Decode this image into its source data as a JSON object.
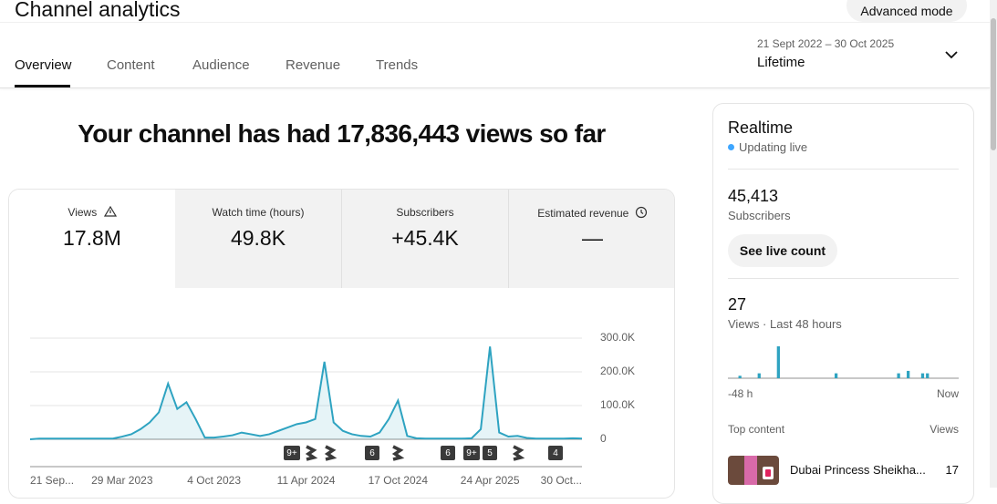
{
  "header": {
    "title": "Channel analytics",
    "advanced_mode": "Advanced mode"
  },
  "tabs": [
    "Overview",
    "Content",
    "Audience",
    "Revenue",
    "Trends"
  ],
  "date_range": {
    "range": "21 Sept 2022 – 30 Oct 2025",
    "label": "Lifetime"
  },
  "headline": "Your channel has had 17,836,443 views so far",
  "metrics": [
    {
      "label": "Views",
      "value": "17.8M"
    },
    {
      "label": "Watch time (hours)",
      "value": "49.8K"
    },
    {
      "label": "Subscribers",
      "value": "+45.4K"
    },
    {
      "label": "Estimated revenue",
      "value": "—"
    }
  ],
  "chart_data": [
    {
      "type": "line",
      "color": "#2ea3c1",
      "grid": true,
      "categories": [
        "21 Sep...",
        null,
        null,
        null,
        null,
        null,
        null,
        null,
        null,
        null,
        "29 Mar 2023",
        null,
        null,
        null,
        null,
        null,
        null,
        null,
        null,
        null,
        "4 Oct 2023",
        null,
        null,
        null,
        null,
        null,
        null,
        null,
        null,
        null,
        "11 Apr 2024",
        null,
        null,
        null,
        null,
        null,
        null,
        null,
        null,
        null,
        "17 Oct 2024",
        null,
        null,
        null,
        null,
        null,
        null,
        null,
        null,
        null,
        "24 Apr 2025",
        null,
        null,
        null,
        null,
        null,
        null,
        null,
        null,
        null,
        "30 Oct..."
      ],
      "values": [
        0,
        2000,
        2000,
        2000,
        2000,
        2000,
        2000,
        2000,
        2000,
        2000,
        8000,
        15000,
        30000,
        50000,
        80000,
        165000,
        90000,
        110000,
        60000,
        5000,
        5000,
        8000,
        12000,
        20000,
        15000,
        10000,
        15000,
        25000,
        35000,
        45000,
        50000,
        60000,
        230000,
        50000,
        25000,
        15000,
        10000,
        8000,
        20000,
        60000,
        115000,
        10000,
        3000,
        2000,
        2000,
        2000,
        2000,
        2000,
        3000,
        30000,
        275000,
        20000,
        8000,
        10000,
        4000,
        2000,
        2000,
        2000,
        2000,
        3000,
        2000
      ],
      "ylim": [
        0,
        300000
      ],
      "yticks": [
        0,
        {
          "value": 100000,
          "label": "100.0K"
        },
        {
          "value": 200000,
          "label": "200.0K"
        },
        {
          "value": 300000,
          "label": "300.0K"
        }
      ]
    },
    {
      "type": "bar",
      "color": "#2ea3c1",
      "categories": [
        "-48 h",
        null,
        null,
        null,
        null,
        null,
        null,
        null,
        null,
        null,
        null,
        null,
        null,
        null,
        null,
        null,
        null,
        null,
        null,
        null,
        null,
        null,
        null,
        null,
        null,
        null,
        null,
        null,
        null,
        null,
        null,
        null,
        null,
        null,
        null,
        null,
        null,
        null,
        null,
        null,
        null,
        null,
        null,
        null,
        null,
        null,
        null,
        "Now"
      ],
      "values": [
        0,
        0,
        1,
        0,
        0,
        0,
        2,
        0,
        0,
        0,
        13,
        0,
        0,
        0,
        0,
        0,
        0,
        0,
        0,
        0,
        0,
        0,
        2,
        0,
        0,
        0,
        0,
        0,
        0,
        0,
        0,
        0,
        0,
        0,
        0,
        2,
        0,
        3,
        0,
        0,
        2,
        2,
        0,
        0,
        0,
        0,
        0,
        0
      ]
    }
  ],
  "chart_markers": [
    "9+",
    "6",
    "6",
    "9+",
    "5",
    "4"
  ],
  "realtime": {
    "title": "Realtime",
    "status": "Updating live",
    "subscribers": "45,413",
    "subscribers_label": "Subscribers",
    "button": "See live count",
    "views": "27",
    "views_label": "Views · Last 48 hours",
    "top_content_label": "Top content",
    "views_column": "Views",
    "top_content": [
      {
        "title": "Dubai Princess Sheikha...",
        "views": "17"
      }
    ]
  }
}
